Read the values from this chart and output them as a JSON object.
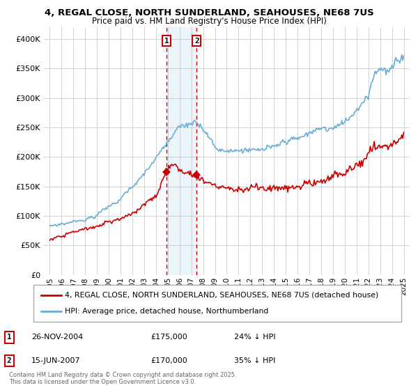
{
  "title": "4, REGAL CLOSE, NORTH SUNDERLAND, SEAHOUSES, NE68 7US",
  "subtitle": "Price paid vs. HM Land Registry's House Price Index (HPI)",
  "legend_line1": "4, REGAL CLOSE, NORTH SUNDERLAND, SEAHOUSES, NE68 7US (detached house)",
  "legend_line2": "HPI: Average price, detached house, Northumberland",
  "transaction1_date": "26-NOV-2004",
  "transaction1_price": "£175,000",
  "transaction1_hpi": "24% ↓ HPI",
  "transaction2_date": "15-JUN-2007",
  "transaction2_price": "£170,000",
  "transaction2_hpi": "35% ↓ HPI",
  "copyright": "Contains HM Land Registry data © Crown copyright and database right 2025.\nThis data is licensed under the Open Government Licence v3.0.",
  "hpi_color": "#6aaed6",
  "price_color": "#cc0000",
  "marker1_x": 2004.9,
  "marker2_x": 2007.45,
  "ylim": [
    0,
    420000
  ],
  "xlim_start": 1994.5,
  "xlim_end": 2025.5,
  "yticks": [
    0,
    50000,
    100000,
    150000,
    200000,
    250000,
    300000,
    350000,
    400000
  ],
  "xticks": [
    1995,
    1996,
    1997,
    1998,
    1999,
    2000,
    2001,
    2002,
    2003,
    2004,
    2005,
    2006,
    2007,
    2008,
    2009,
    2010,
    2011,
    2012,
    2013,
    2014,
    2015,
    2016,
    2017,
    2018,
    2019,
    2020,
    2021,
    2022,
    2023,
    2024,
    2025
  ]
}
